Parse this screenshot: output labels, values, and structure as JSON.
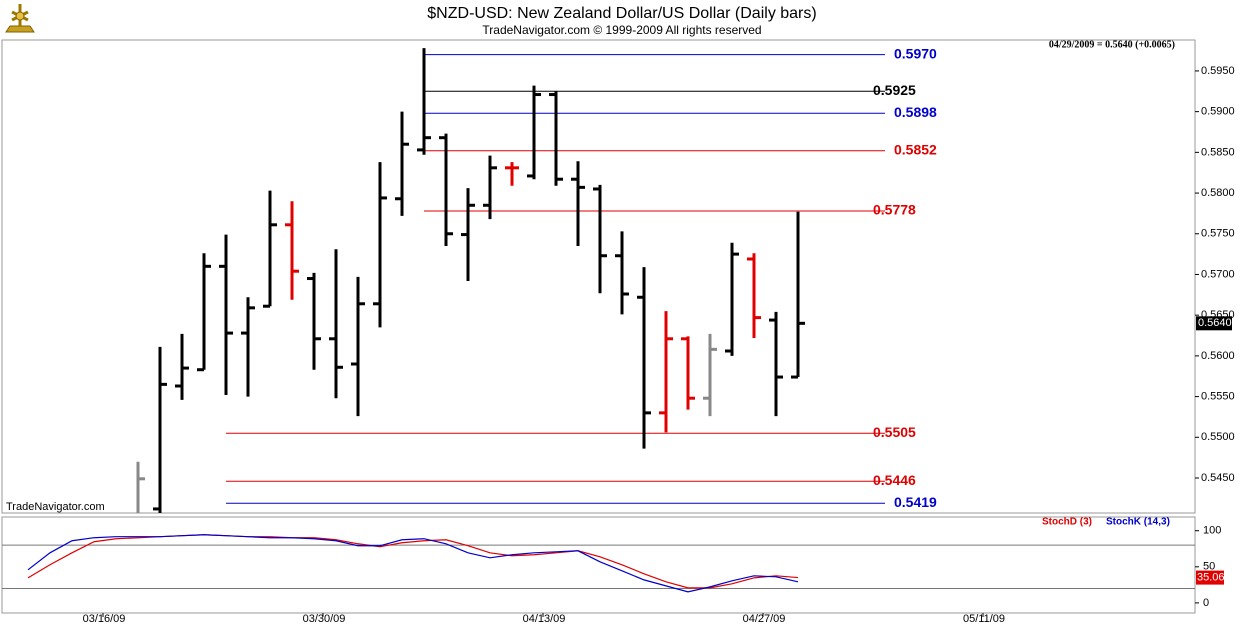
{
  "chart_data": [
    {
      "type": "ohlc",
      "title": "$NZD-USD:  New Zealand Dollar/US Dollar  (Daily bars)",
      "subtitle": "TradeNavigator.com © 1999-2009 All rights reserved",
      "quote": "04/29/2009 = 0.5640 (+0.0065)",
      "watermark": "TradeNavigator.com",
      "categories": [
        null,
        null,
        null,
        "03/16/09",
        null,
        null,
        null,
        null,
        null,
        null,
        null,
        null,
        null,
        "03/30/09",
        null,
        null,
        null,
        null,
        null,
        null,
        null,
        null,
        null,
        "04/13/09",
        null,
        null,
        null,
        null,
        null,
        null,
        null,
        null,
        null,
        "04/27/09",
        null,
        null,
        null,
        null,
        null,
        null,
        null,
        null,
        null,
        "05/11/09",
        null,
        null,
        null,
        null,
        null,
        null,
        null,
        null,
        null
      ],
      "open": [
        null,
        null,
        null,
        null,
        null,
        0.54,
        0.5412,
        0.5563,
        0.5583,
        0.571,
        0.5628,
        0.5661,
        0.5761,
        0.5695,
        0.5621,
        0.559,
        0.5664,
        0.5793,
        0.5853,
        0.5868,
        0.5749,
        0.5785,
        0.5831,
        0.5821,
        0.5921,
        0.5817,
        0.5805,
        0.5723,
        0.5672,
        0.553,
        0.5621,
        0.5548,
        0.5606,
        0.5719,
        0.5644,
        0.5574,
        null,
        null,
        null,
        null,
        null,
        null,
        null,
        null,
        null,
        null,
        null,
        null,
        null,
        null,
        null,
        null,
        null
      ],
      "high": [
        null,
        null,
        null,
        null,
        null,
        0.547,
        0.5611,
        0.5627,
        0.5726,
        0.5749,
        0.5672,
        0.5803,
        0.579,
        0.5702,
        0.5731,
        0.5697,
        0.5838,
        0.59,
        0.5978,
        0.5873,
        0.5806,
        0.5846,
        0.5838,
        0.5932,
        0.5925,
        0.5839,
        0.581,
        0.5753,
        0.5709,
        0.5655,
        0.5624,
        0.5627,
        0.5739,
        0.5726,
        0.5654,
        0.5777,
        null,
        null,
        null,
        null,
        null,
        null,
        null,
        null,
        null,
        null,
        null,
        null,
        null,
        null,
        null,
        null,
        null
      ],
      "low": [
        null,
        null,
        null,
        null,
        null,
        0.538,
        0.539,
        0.5546,
        0.5583,
        0.5552,
        0.555,
        0.5661,
        0.5669,
        0.5583,
        0.5548,
        0.5526,
        0.5635,
        0.5772,
        0.5847,
        0.5735,
        0.5692,
        0.5768,
        0.5809,
        0.5817,
        0.5809,
        0.5735,
        0.5677,
        0.5651,
        0.5486,
        0.5506,
        0.5534,
        0.5526,
        0.56,
        0.5622,
        0.5526,
        0.5574,
        null,
        null,
        null,
        null,
        null,
        null,
        null,
        null,
        null,
        null,
        null,
        null,
        null,
        null,
        null,
        null,
        null
      ],
      "close": [
        null,
        null,
        null,
        null,
        null,
        0.5449,
        0.5565,
        0.5585,
        0.571,
        0.5628,
        0.5659,
        0.5761,
        0.5704,
        0.5621,
        0.5586,
        0.5664,
        0.5794,
        0.586,
        0.5868,
        0.575,
        0.5785,
        0.5831,
        0.5831,
        0.5921,
        0.5817,
        0.5807,
        0.5723,
        0.5676,
        0.553,
        0.5621,
        0.5548,
        0.5608,
        0.5725,
        0.5647,
        0.5574,
        0.564,
        null,
        null,
        null,
        null,
        null,
        null,
        null,
        null,
        null,
        null,
        null,
        null,
        null,
        null,
        null,
        null,
        null
      ],
      "colors": [
        null,
        null,
        null,
        null,
        null,
        "#888888",
        "#000000",
        "#000000",
        "#000000",
        "#000000",
        "#000000",
        "#000000",
        "#e00000",
        "#000000",
        "#000000",
        "#000000",
        "#000000",
        "#000000",
        "#000000",
        "#000000",
        "#000000",
        "#000000",
        "#e00000",
        "#000000",
        "#000000",
        "#000000",
        "#000000",
        "#000000",
        "#000000",
        "#e00000",
        "#e00000",
        "#888888",
        "#000000",
        "#e00000",
        "#000000",
        "#000000",
        null,
        null,
        null,
        null,
        null,
        null,
        null,
        null,
        null,
        null,
        null,
        null,
        null,
        null,
        null,
        null,
        null
      ],
      "ylim": [
        0.5407,
        0.5988
      ],
      "yticks": [
        {
          "value": 0.545,
          "label": "0.5450"
        },
        {
          "value": 0.55,
          "label": "0.5500"
        },
        {
          "value": 0.555,
          "label": "0.5550"
        },
        {
          "value": 0.56,
          "label": "0.5600"
        },
        {
          "value": 0.565,
          "label": "0.5650"
        },
        {
          "value": 0.57,
          "label": "0.5700"
        },
        {
          "value": 0.575,
          "label": "0.5750"
        },
        {
          "value": 0.58,
          "label": "0.5800"
        },
        {
          "value": 0.585,
          "label": "0.5850"
        },
        {
          "value": 0.59,
          "label": "0.5900"
        },
        {
          "value": 0.595,
          "label": "0.5950"
        }
      ],
      "last_price": {
        "value": 0.564,
        "label": "0.5640"
      },
      "levels": [
        {
          "value": 0.597,
          "label": "0.5970",
          "color": "#0000cc"
        },
        {
          "value": 0.5925,
          "label": "0.5925",
          "color": "#000000"
        },
        {
          "value": 0.5898,
          "label": "0.5898",
          "color": "#0000cc"
        },
        {
          "value": 0.5852,
          "label": "0.5852",
          "color": "#e00000"
        },
        {
          "value": 0.5778,
          "label": "0.5778",
          "color": "#e00000"
        },
        {
          "value": 0.5505,
          "label": "0.5505",
          "color": "#e00000"
        },
        {
          "value": 0.5446,
          "label": "0.5446",
          "color": "#e00000"
        },
        {
          "value": 0.5419,
          "label": "0.5419",
          "color": "#0000cc"
        }
      ]
    },
    {
      "type": "line",
      "series": [
        {
          "name": "StochD (3)",
          "color": "#e00000",
          "values": [
            34.7,
            52.8,
            69.4,
            84.7,
            88.9,
            90.3,
            91.7,
            93.1,
            94.4,
            93.1,
            91.7,
            91.7,
            90.3,
            90.3,
            87.5,
            81.9,
            77.8,
            83.3,
            86.1,
            87.5,
            79.2,
            69.4,
            65.3,
            66.7,
            69.4,
            72.2,
            63.9,
            52.8,
            40.3,
            29.2,
            20.8,
            20.8,
            26.4,
            34.7,
            37.5,
            35.06,
            null,
            null,
            null,
            null,
            null,
            null,
            null,
            null,
            null,
            null,
            null,
            null,
            null,
            null,
            null,
            null,
            null
          ]
        },
        {
          "name": "StochK (14,3)",
          "color": "#0000cc",
          "values": [
            45.8,
            69.4,
            86.1,
            90.3,
            91.7,
            91.7,
            91.7,
            93.1,
            94.4,
            93.1,
            91.7,
            90.3,
            90.3,
            88.9,
            86.1,
            79.2,
            79.2,
            87.5,
            88.9,
            81.9,
            69.4,
            62.5,
            66.7,
            69.4,
            70.8,
            72.2,
            56.9,
            44.4,
            31.9,
            23.6,
            15.3,
            22.2,
            30.6,
            37.5,
            36.1,
            29.2,
            null,
            null,
            null,
            null,
            null,
            null,
            null,
            null,
            null,
            null,
            null,
            null,
            null,
            null,
            null,
            null,
            null
          ]
        }
      ],
      "ylim": [
        -14,
        119
      ],
      "yticks": [
        0,
        50,
        100
      ],
      "hlines": [
        80,
        20
      ],
      "last_value": 35.06
    }
  ]
}
